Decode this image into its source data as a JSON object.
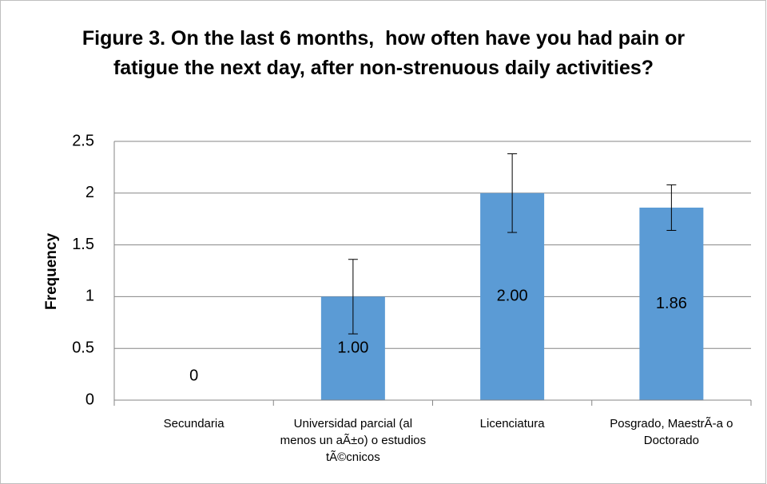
{
  "chart_data": {
    "type": "bar",
    "title": "Figure 3. On the last 6 months,  how often have you had pain or fatigue the next day, after non-strenuous daily activities?",
    "y_label": "Frequency",
    "categories": [
      "Secundaria",
      "Universidad parcial (al menos un aÃ±o) o estudios tÃ©cnicos",
      "Licenciatura",
      "Posgrado, MaestrÃ-a o Doctorado"
    ],
    "values": [
      0,
      1.0,
      2.0,
      1.86
    ],
    "value_labels": [
      "0",
      "1.00",
      "2.00",
      "1.86"
    ],
    "errors": [
      0,
      0.36,
      0.38,
      0.22
    ],
    "color": "#5b9bd5",
    "ylim": [
      0,
      2.5
    ],
    "yticks": [
      0,
      0.5,
      1,
      1.5,
      2,
      2.5
    ],
    "grid": true
  }
}
